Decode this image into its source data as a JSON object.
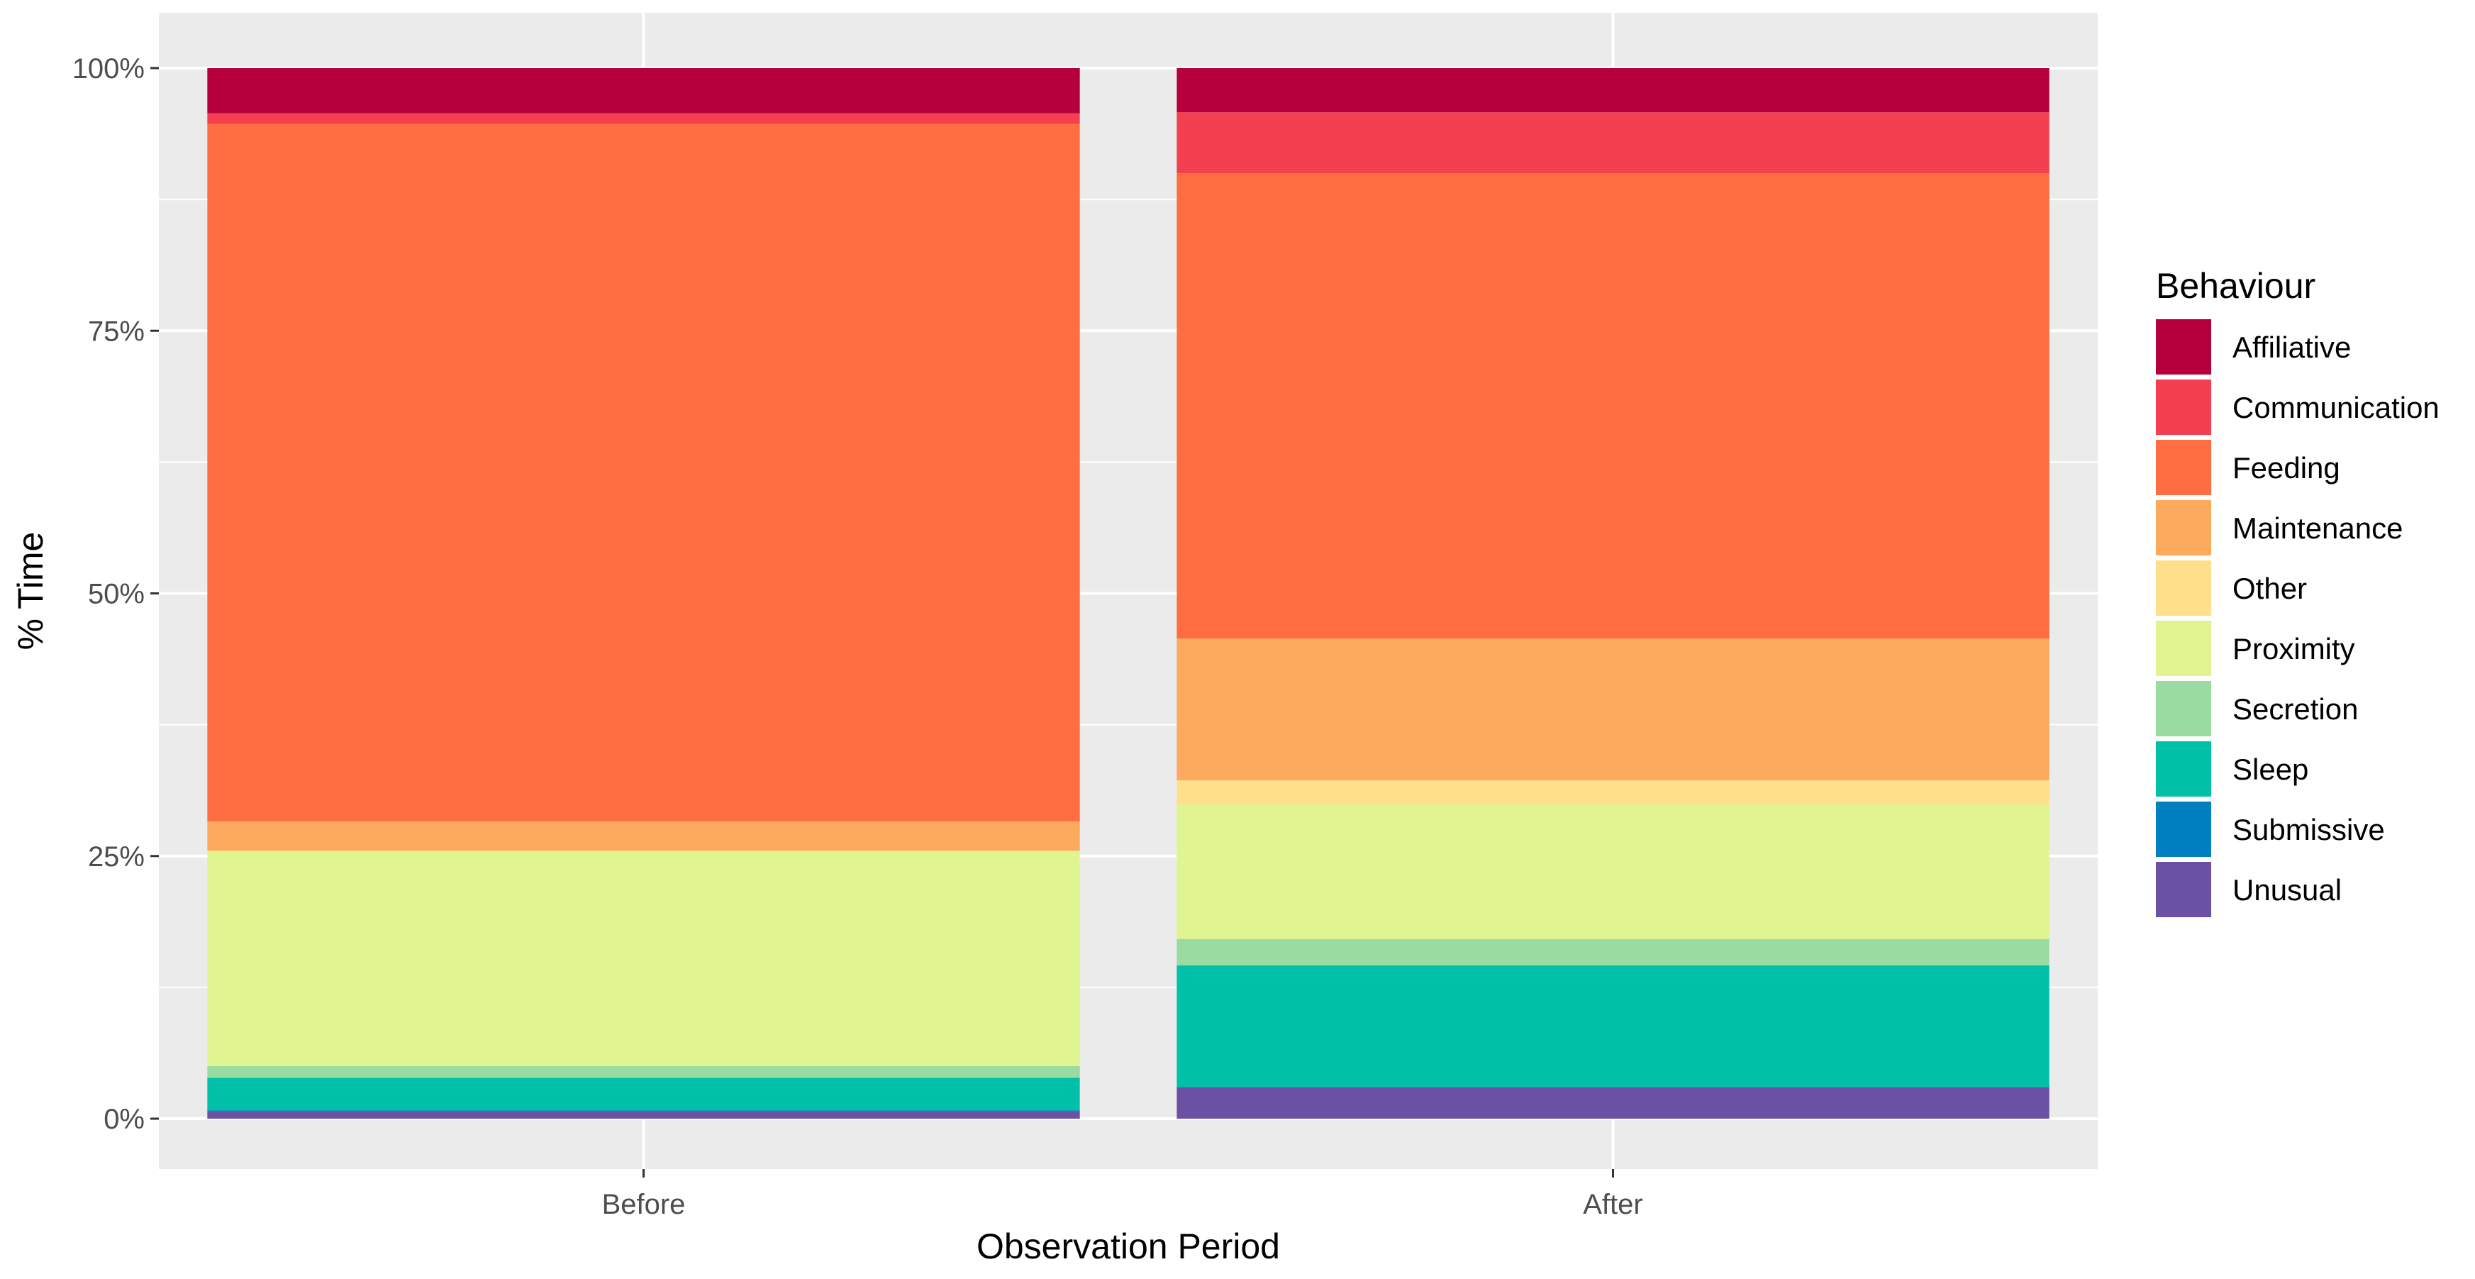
{
  "chart_data": {
    "type": "bar",
    "stacked": true,
    "percent": true,
    "categories": [
      "Before",
      "After"
    ],
    "xlabel": "Observation Period",
    "ylabel": "% Time",
    "ylim": [
      0,
      1
    ],
    "y_ticks": [
      0,
      0.25,
      0.5,
      0.75,
      1.0
    ],
    "y_tick_labels": [
      "0%",
      "25%",
      "50%",
      "75%",
      "100%"
    ],
    "grid": true,
    "legend": {
      "title": "Behaviour",
      "position": "right"
    },
    "series": [
      {
        "name": "Unusual",
        "color": "#6A51A3",
        "values": [
          0.007,
          0.03
        ]
      },
      {
        "name": "Submissive",
        "color": "#0080C0",
        "values": [
          0.001,
          0.0
        ]
      },
      {
        "name": "Sleep",
        "color": "#00C0A8",
        "values": [
          0.031,
          0.116
        ]
      },
      {
        "name": "Secretion",
        "color": "#99DBA1",
        "values": [
          0.011,
          0.025
        ]
      },
      {
        "name": "Proximity",
        "color": "#E0F490",
        "values": [
          0.205,
          0.128
        ]
      },
      {
        "name": "Other",
        "color": "#FEE08B",
        "values": [
          0.0,
          0.023
        ]
      },
      {
        "name": "Maintenance",
        "color": "#FDAA5E",
        "values": [
          0.028,
          0.135
        ]
      },
      {
        "name": "Feeding",
        "color": "#FF6D40",
        "values": [
          0.664,
          0.443
        ]
      },
      {
        "name": "Communication",
        "color": "#F33F50",
        "values": [
          0.01,
          0.058
        ]
      },
      {
        "name": "Affiliative",
        "color": "#B6003D",
        "values": [
          0.043,
          0.042
        ]
      }
    ],
    "legend_order": [
      "Affiliative",
      "Communication",
      "Feeding",
      "Maintenance",
      "Other",
      "Proximity",
      "Secretion",
      "Sleep",
      "Submissive",
      "Unusual"
    ]
  }
}
